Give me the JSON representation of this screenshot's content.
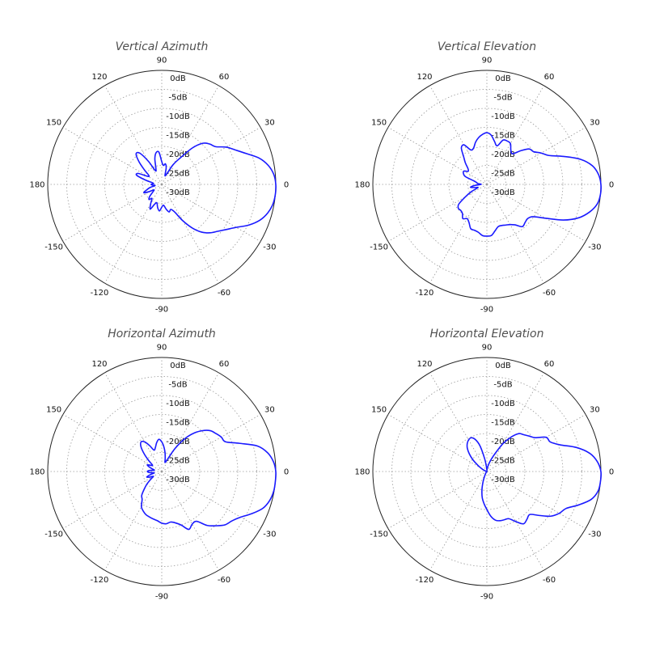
{
  "chart_data": [
    {
      "type": "line",
      "subtype": "polar",
      "title": "Vertical Azimuth",
      "angle_ticks": [
        "90",
        "60",
        "30",
        "0",
        "-30",
        "-60",
        "-90",
        "-120",
        "-150",
        "180",
        "150",
        "120"
      ],
      "radial_ticks": [
        "0dB",
        "-5dB",
        "-10dB",
        "-15dB",
        "-20dB",
        "-25dB",
        "-30dB"
      ],
      "rlim": [
        -30,
        0
      ],
      "grid": true,
      "series": [
        {
          "color": "#1a1aff",
          "angle_deg": [
            0,
            5,
            10,
            15,
            20,
            25,
            30,
            35,
            40,
            45,
            50,
            55,
            60,
            65,
            70,
            75,
            80,
            85,
            90,
            95,
            100,
            105,
            110,
            115,
            120,
            125,
            130,
            135,
            140,
            145,
            150,
            155,
            160,
            165,
            170,
            175,
            180,
            185,
            190,
            195,
            200,
            205,
            210,
            215,
            220,
            225,
            230,
            235,
            240,
            245,
            250,
            255,
            260,
            265,
            270,
            275,
            280,
            285,
            290,
            295,
            300,
            305,
            310,
            315,
            320,
            325,
            330,
            335,
            340,
            345,
            350,
            355
          ],
          "gain_db": [
            0.0,
            -0.4,
            -1.5,
            -3.4,
            -6.3,
            -8.6,
            -10.4,
            -12.7,
            -13.5,
            -14.7,
            -17.5,
            -21.5,
            -24.0,
            -27.0,
            -27.5,
            -25.5,
            -24.5,
            -25.0,
            -24.0,
            -21.5,
            -21.5,
            -23.0,
            -25.5,
            -26.0,
            -23.0,
            -20.0,
            -19.5,
            -21.5,
            -24.0,
            -25.8,
            -25.8,
            -23.2,
            -23.0,
            -25.5,
            -27.5,
            -27.8,
            -27.2,
            -27.6,
            -28.2,
            -26.8,
            -25.8,
            -24.8,
            -26.2,
            -27.5,
            -27.0,
            -25.5,
            -24.8,
            -25.5,
            -24.2,
            -22.8,
            -24.4,
            -25.0,
            -23.8,
            -23.0,
            -24.0,
            -24.5,
            -23.4,
            -22.5,
            -23.0,
            -22.0,
            -19.0,
            -16.0,
            -13.6,
            -12.0,
            -10.8,
            -9.3,
            -7.4,
            -4.7,
            -2.5,
            -1.1,
            -0.3,
            0.0
          ]
        }
      ]
    },
    {
      "type": "line",
      "subtype": "polar",
      "title": "Vertical Elevation",
      "angle_ticks": [
        "90",
        "60",
        "30",
        "0",
        "-30",
        "-60",
        "-90",
        "-120",
        "-150",
        "180",
        "150",
        "120"
      ],
      "radial_ticks": [
        "0dB",
        "-5dB",
        "-10dB",
        "-15dB",
        "-20dB",
        "-25dB",
        "-30dB"
      ],
      "rlim": [
        -30,
        0
      ],
      "grid": true,
      "series": [
        {
          "color": "#1a1aff",
          "angle_deg": [
            0,
            5,
            10,
            15,
            20,
            25,
            30,
            35,
            40,
            45,
            50,
            55,
            60,
            65,
            70,
            75,
            80,
            85,
            90,
            95,
            100,
            105,
            110,
            115,
            120,
            125,
            130,
            135,
            140,
            145,
            150,
            155,
            160,
            165,
            170,
            175,
            180,
            185,
            190,
            195,
            200,
            205,
            210,
            215,
            220,
            225,
            230,
            235,
            240,
            245,
            250,
            255,
            260,
            265,
            270,
            275,
            280,
            285,
            290,
            295,
            300,
            305,
            310,
            315,
            320,
            325,
            330,
            335,
            340,
            345,
            350,
            355
          ],
          "gain_db": [
            0.0,
            -0.5,
            -1.8,
            -4.5,
            -8.5,
            -12.0,
            -13.5,
            -15.0,
            -15.5,
            -17.5,
            -19.5,
            -19.0,
            -17.6,
            -17.4,
            -17.6,
            -19.5,
            -18.5,
            -17.0,
            -16.4,
            -16.8,
            -17.5,
            -18.5,
            -19.8,
            -20.0,
            -18.0,
            -18.3,
            -20.5,
            -22.0,
            -23.5,
            -24.0,
            -23.0,
            -23.2,
            -24.0,
            -26.5,
            -27.3,
            -27.6,
            -28.5,
            -26.8,
            -25.6,
            -26.8,
            -27.5,
            -25.5,
            -23.5,
            -21.0,
            -20.2,
            -20.3,
            -20.0,
            -19.0,
            -19.6,
            -18.9,
            -17.6,
            -17.5,
            -17.2,
            -16.5,
            -16.4,
            -16.5,
            -17.6,
            -18.5,
            -18.5,
            -18.2,
            -17.8,
            -17.0,
            -15.5,
            -15.8,
            -16.0,
            -15.2,
            -12.2,
            -7.8,
            -4.3,
            -2.0,
            -0.5,
            0.0
          ]
        }
      ]
    },
    {
      "type": "line",
      "subtype": "polar",
      "title": "Horizontal Azimuth",
      "angle_ticks": [
        "90",
        "60",
        "30",
        "0",
        "-30",
        "-60",
        "-90",
        "-120",
        "-150",
        "180",
        "150",
        "120"
      ],
      "radial_ticks": [
        "0dB",
        "-5dB",
        "-10dB",
        "-15dB",
        "-20dB",
        "-25dB",
        "-30dB"
      ],
      "rlim": [
        -30,
        0
      ],
      "grid": true,
      "series": [
        {
          "color": "#1a1aff",
          "angle_deg": [
            0,
            5,
            10,
            15,
            20,
            25,
            30,
            35,
            40,
            45,
            50,
            55,
            60,
            65,
            70,
            75,
            80,
            85,
            90,
            95,
            100,
            105,
            110,
            115,
            120,
            125,
            130,
            135,
            140,
            145,
            150,
            155,
            160,
            165,
            170,
            175,
            180,
            185,
            190,
            195,
            200,
            205,
            210,
            215,
            220,
            225,
            230,
            235,
            240,
            245,
            250,
            255,
            260,
            265,
            270,
            275,
            280,
            285,
            290,
            295,
            300,
            305,
            310,
            315,
            320,
            325,
            330,
            335,
            340,
            345,
            350,
            355
          ],
          "gain_db": [
            0.0,
            -0.5,
            -1.7,
            -4.0,
            -8.3,
            -11.5,
            -11.9,
            -12.6,
            -13.3,
            -14.8,
            -16.8,
            -19.5,
            -23.0,
            -26.5,
            -27.5,
            -26.5,
            -25.0,
            -23.5,
            -22.2,
            -21.5,
            -22.3,
            -23.5,
            -24.0,
            -22.5,
            -21.0,
            -20.5,
            -21.5,
            -23.5,
            -25.5,
            -27.0,
            -26.8,
            -25.8,
            -26.5,
            -27.5,
            -28.0,
            -26.8,
            -26.2,
            -26.8,
            -28.0,
            -27.0,
            -25.8,
            -26.5,
            -27.5,
            -26.5,
            -25.0,
            -23.5,
            -21.8,
            -21.0,
            -19.3,
            -18.5,
            -17.9,
            -17.6,
            -17.3,
            -17.0,
            -16.4,
            -16.2,
            -16.5,
            -16.0,
            -15.0,
            -13.2,
            -14.0,
            -14.0,
            -11.5,
            -9.8,
            -8.2,
            -7.4,
            -6.0,
            -3.8,
            -1.7,
            -0.6,
            -0.1,
            0.0
          ]
        }
      ]
    },
    {
      "type": "line",
      "subtype": "polar",
      "title": "Horizontal Elevation",
      "angle_ticks": [
        "90",
        "60",
        "30",
        "0",
        "-30",
        "-60",
        "-90",
        "-120",
        "-150",
        "180",
        "150",
        "120"
      ],
      "radial_ticks": [
        "0dB",
        "-5dB",
        "-10dB",
        "-15dB",
        "-20dB",
        "-25dB",
        "-30dB"
      ],
      "rlim": [
        -30,
        0
      ],
      "grid": true,
      "series": [
        {
          "color": "#1a1aff",
          "angle_deg": [
            0,
            5,
            10,
            15,
            20,
            25,
            30,
            35,
            40,
            45,
            50,
            55,
            60,
            65,
            70,
            75,
            80,
            85,
            90,
            95,
            100,
            105,
            110,
            115,
            120,
            125,
            130,
            135,
            140,
            145,
            150,
            155,
            160,
            165,
            170,
            175,
            180,
            185,
            190,
            195,
            200,
            205,
            210,
            215,
            220,
            225,
            230,
            235,
            240,
            245,
            250,
            255,
            260,
            265,
            270,
            275,
            280,
            285,
            290,
            295,
            300,
            305,
            310,
            315,
            320,
            325,
            330,
            335,
            340,
            345,
            350,
            355
          ],
          "gain_db": [
            0.0,
            -0.8,
            -2.5,
            -5.6,
            -9.5,
            -11.6,
            -12.0,
            -14.5,
            -15.5,
            -16.3,
            -17.0,
            -19.0,
            -21.5,
            -24.6,
            -26.5,
            -27.8,
            -28.8,
            -29.4,
            -29.6,
            -28.8,
            -26.5,
            -23.0,
            -21.0,
            -20.2,
            -20.4,
            -21.0,
            -22.0,
            -23.5,
            -25.2,
            -27.0,
            -28.2,
            -29.0,
            -29.6,
            -30.0,
            -30.0,
            -30.0,
            -30.0,
            -30.0,
            -30.0,
            -30.0,
            -30.0,
            -30.0,
            -30.0,
            -30.0,
            -30.0,
            -30.0,
            -29.8,
            -29.6,
            -29.2,
            -28.5,
            -27.0,
            -25.0,
            -23.0,
            -21.5,
            -20.0,
            -18.2,
            -17.0,
            -16.6,
            -16.5,
            -16.3,
            -14.8,
            -13.2,
            -13.6,
            -14.0,
            -12.0,
            -9.5,
            -8.0,
            -7.0,
            -4.3,
            -1.6,
            -0.3,
            0.0
          ]
        }
      ]
    }
  ]
}
